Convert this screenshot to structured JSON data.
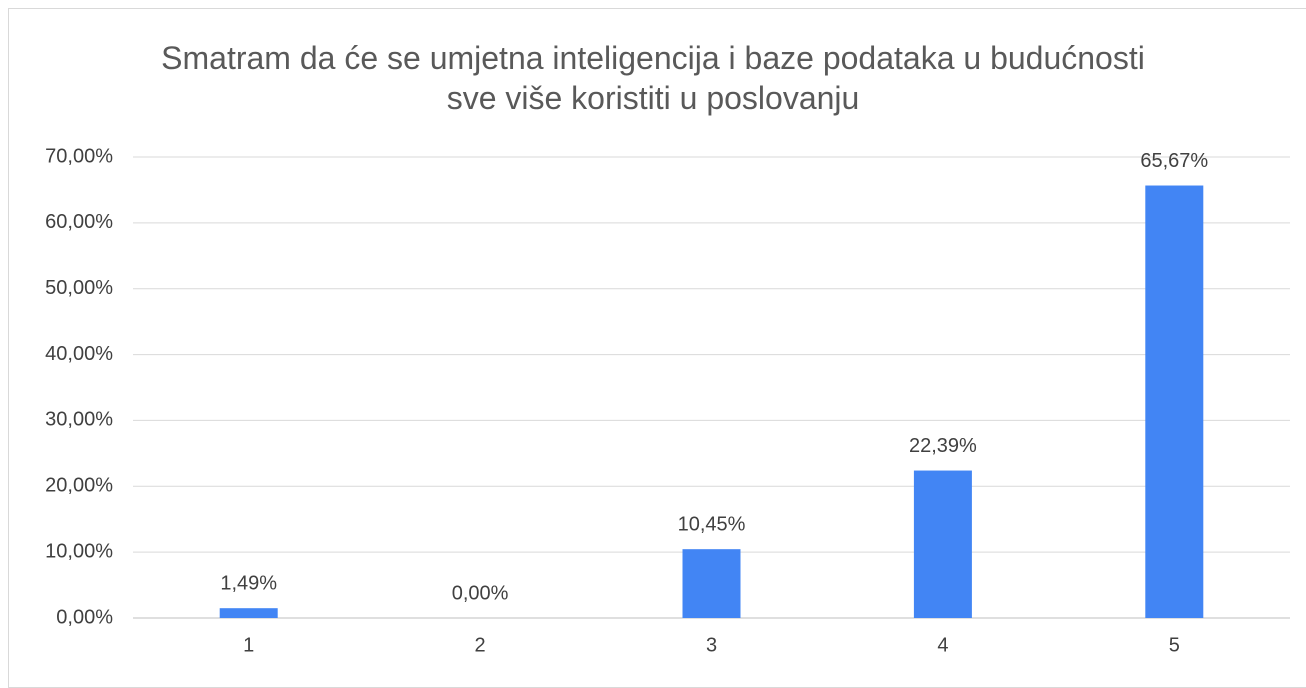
{
  "chart_data": {
    "type": "bar",
    "title": "Smatram da će se umjetna inteligencija i baze podataka u budućnosti sve više koristiti u poslovanju",
    "categories": [
      "1",
      "2",
      "3",
      "4",
      "5"
    ],
    "values": [
      1.49,
      0,
      10.45,
      22.39,
      65.67
    ],
    "value_labels": [
      "1,49%",
      "0,00%",
      "10,45%",
      "22,39%",
      "65,67%"
    ],
    "color": "#4285f4",
    "ylim": [
      0,
      70
    ],
    "yticks": [
      {
        "value": 0,
        "label": "0,00%"
      },
      {
        "value": 10,
        "label": "10,00%"
      },
      {
        "value": 20,
        "label": "20,00%"
      },
      {
        "value": 30,
        "label": "30,00%"
      },
      {
        "value": 40,
        "label": "40,00%"
      },
      {
        "value": 50,
        "label": "50,00%"
      },
      {
        "value": 60,
        "label": "60,00%"
      },
      {
        "value": 70,
        "label": "70,00%"
      }
    ],
    "grid": true
  }
}
